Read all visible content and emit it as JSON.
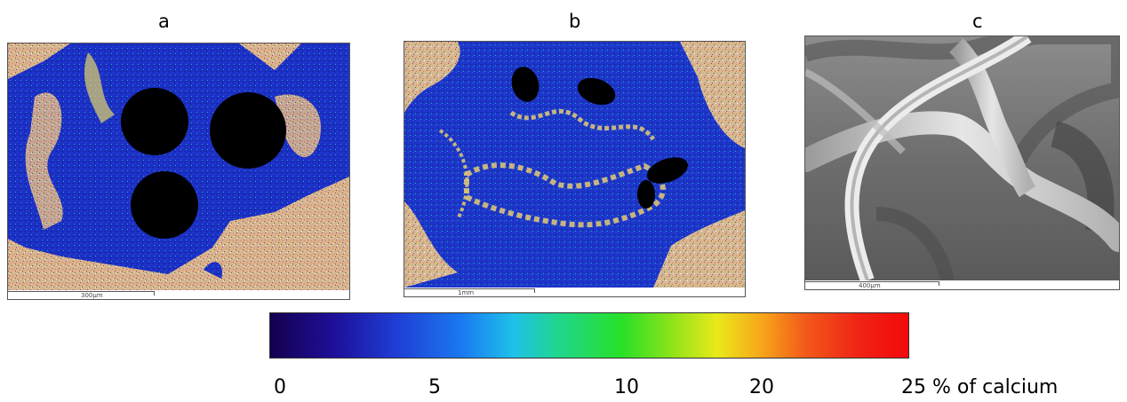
{
  "panels": [
    {
      "label": "a",
      "scale_text": "300µm"
    },
    {
      "label": "b",
      "scale_text": "1mm"
    },
    {
      "label": "c",
      "scale_text": "400µm"
    }
  ],
  "colorbar": {
    "ticks": [
      "0",
      "5",
      "10",
      "20",
      "25 % of calcium"
    ],
    "colors": [
      "#14004e",
      "#1f3fd6",
      "#1fc0ea",
      "#27e028",
      "#e9e91a",
      "#f2591a",
      "#f20a0a"
    ]
  }
}
